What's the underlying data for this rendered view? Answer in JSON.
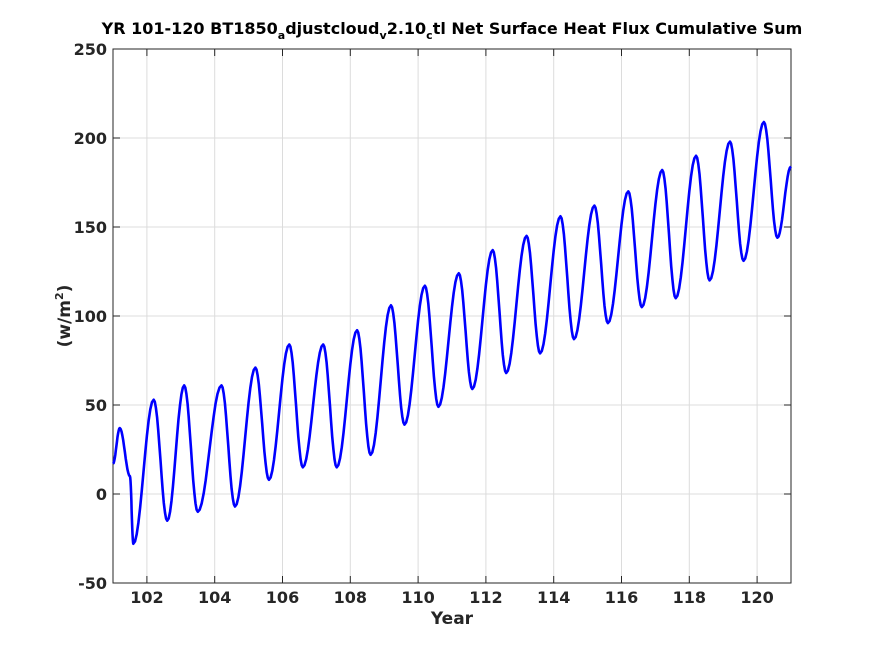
{
  "chart_data": {
    "type": "line",
    "title_parts": {
      "p1": "YR 101-120 BT1850",
      "s1": "a",
      "p2": "djustcloud",
      "s2": "v",
      "p3": "2.10",
      "s3": "c",
      "p4": "tl Net Surface Heat Flux  Cumulative Sum"
    },
    "xlabel": "Year",
    "ylabel_parts": {
      "base": "(w/m",
      "sup": "2",
      "close": ")"
    },
    "xlim": [
      101,
      121
    ],
    "ylim": [
      -50,
      250
    ],
    "xticks": [
      102,
      104,
      106,
      108,
      110,
      112,
      114,
      116,
      118,
      120
    ],
    "xtick_labels": [
      "102",
      "104",
      "106",
      "108",
      "110",
      "112",
      "114",
      "116",
      "118",
      "120"
    ],
    "yticks": [
      -50,
      0,
      50,
      100,
      150,
      200,
      250
    ],
    "ytick_labels": [
      "-50",
      "0",
      "50",
      "100",
      "150",
      "200",
      "250"
    ],
    "grid": true,
    "series": [
      {
        "color": "#0000ff",
        "points": [
          [
            101.0,
            17
          ],
          [
            101.2,
            37
          ],
          [
            101.5,
            10
          ],
          [
            101.6,
            -28
          ],
          [
            102.2,
            53
          ],
          [
            102.6,
            -15
          ],
          [
            103.1,
            61
          ],
          [
            103.5,
            -10
          ],
          [
            104.2,
            61
          ],
          [
            104.6,
            -7
          ],
          [
            105.2,
            71
          ],
          [
            105.6,
            8
          ],
          [
            106.2,
            84
          ],
          [
            106.6,
            15
          ],
          [
            107.2,
            84
          ],
          [
            107.6,
            15
          ],
          [
            108.2,
            92
          ],
          [
            108.6,
            22
          ],
          [
            109.2,
            106
          ],
          [
            109.6,
            39
          ],
          [
            110.2,
            117
          ],
          [
            110.6,
            49
          ],
          [
            111.2,
            124
          ],
          [
            111.6,
            59
          ],
          [
            112.2,
            137
          ],
          [
            112.6,
            68
          ],
          [
            113.2,
            145
          ],
          [
            113.6,
            79
          ],
          [
            114.2,
            156
          ],
          [
            114.6,
            87
          ],
          [
            115.2,
            162
          ],
          [
            115.6,
            96
          ],
          [
            116.2,
            170
          ],
          [
            116.6,
            105
          ],
          [
            117.2,
            182
          ],
          [
            117.6,
            110
          ],
          [
            118.2,
            190
          ],
          [
            118.6,
            120
          ],
          [
            119.2,
            198
          ],
          [
            119.6,
            131
          ],
          [
            120.2,
            209
          ],
          [
            120.6,
            144
          ],
          [
            121.0,
            184
          ]
        ]
      }
    ]
  }
}
